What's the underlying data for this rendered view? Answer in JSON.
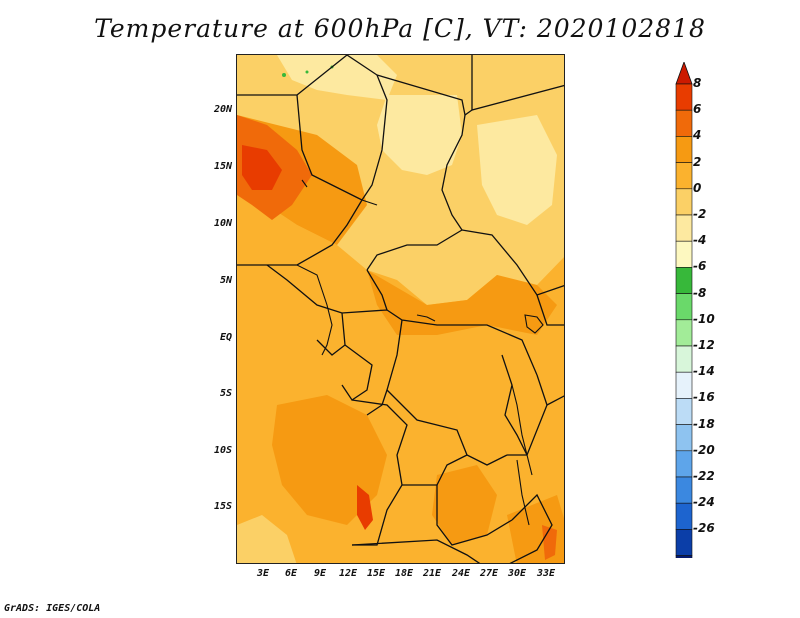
{
  "title": "Temperature at 600hPa [C], VT: 2020102818",
  "credit": "GrADS: IGES/COLA",
  "lat_labels": [
    "20N",
    "15N",
    "10N",
    "5N",
    "EQ",
    "5S",
    "10S",
    "15S"
  ],
  "lon_labels": [
    "3E",
    "6E",
    "9E",
    "12E",
    "15E",
    "18E",
    "21E",
    "24E",
    "27E",
    "30E",
    "33E"
  ],
  "colorbar": {
    "labels": [
      "8",
      "6",
      "4",
      "2",
      "0",
      "-2",
      "-4",
      "-6",
      "-8",
      "-10",
      "-12",
      "-14",
      "-16",
      "-18",
      "-20",
      "-22",
      "-24",
      "-26"
    ],
    "colors": [
      "#cc1a00",
      "#e83c00",
      "#f06a0a",
      "#f69a12",
      "#fbb22e",
      "#fbd066",
      "#fde9a0",
      "#fdf8c0",
      "#37b83a",
      "#6ad96a",
      "#a2ec98",
      "#d8f6da",
      "#e6f2fb",
      "#bcdcf6",
      "#8ec3f0",
      "#5ea5ea",
      "#3b88e0",
      "#1d64cf",
      "#0b3ea8",
      "#051a6e",
      "#d2d2ea"
    ]
  },
  "map_colors": {
    "light": "#fde9a0",
    "pale": "#fbd066",
    "base": "#fbb22e",
    "mid": "#f69a12",
    "warm": "#f06a0a",
    "hot": "#e83c00",
    "green": "#37b83a"
  },
  "icons": {
    "up_arrow": "colorbar-max-triangle",
    "down_arrow": "colorbar-min-triangle"
  }
}
